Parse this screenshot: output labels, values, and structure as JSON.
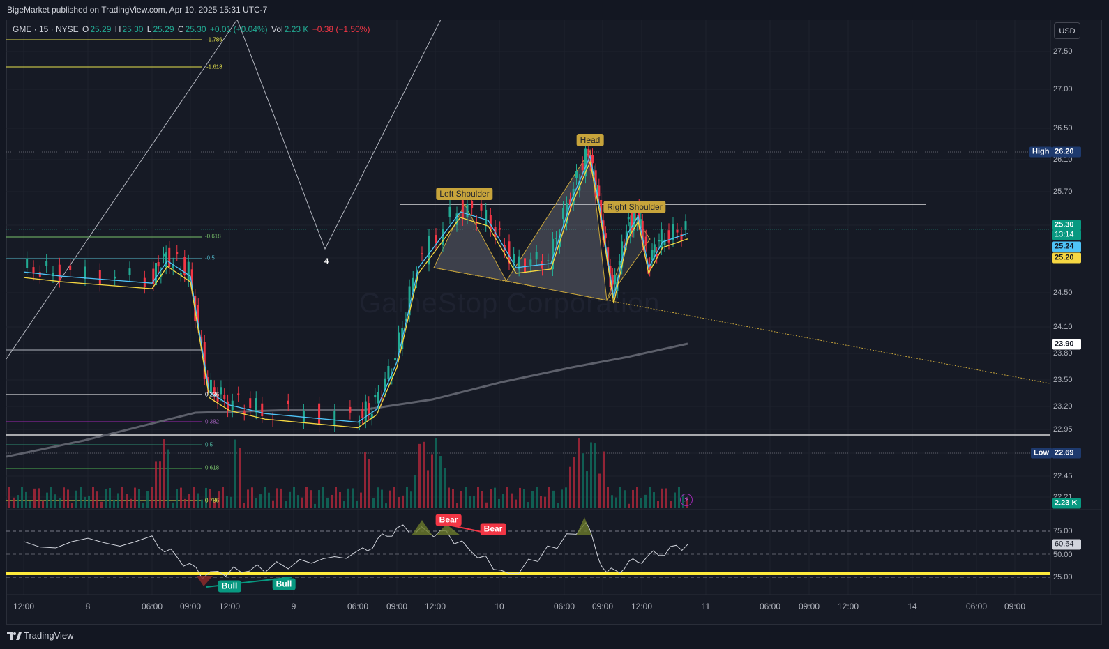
{
  "header": {
    "publisher_text": "BigeMarket published on TradingView.com, Apr 10, 2025 15:31 UTC-7"
  },
  "legend": {
    "symbol": "GME · 15 · NYSE",
    "o_label": "O",
    "o_value": "25.29",
    "h_label": "H",
    "h_value": "25.30",
    "l_label": "L",
    "l_value": "25.29",
    "c_label": "C",
    "c_value": "25.30",
    "change": "+0.01 (+0.04%)",
    "vol_label": "Vol",
    "vol_value": "2.23 K",
    "vol_change": "−0.38 (−1.50%)"
  },
  "currency_button": "USD",
  "watermark": "GameStop Corporation",
  "price_axis": {
    "ticks": [
      "27.50",
      "27.00",
      "26.50",
      "26.10",
      "25.70",
      "24.50",
      "24.10",
      "23.80",
      "23.50",
      "23.20",
      "22.95",
      "22.45",
      "22.21"
    ],
    "high_label": "High",
    "high_value": "26.20",
    "low_label": "Low",
    "low_value": "22.69",
    "last_price": "25.30",
    "countdown": "13:14",
    "ma_fast_value": "25.24",
    "ma_slow_value": "25.20",
    "ma_long_value": "23.90",
    "volume_value": "2.23 K"
  },
  "rsi": {
    "ticks": [
      "75.00",
      "50.00",
      "25.00"
    ],
    "current_value": "60.64",
    "divergence_labels": {
      "bull_1": "Bull",
      "bull_2": "Bull",
      "bear_1": "Bear",
      "bear_2": "Bear"
    }
  },
  "time_axis": [
    "12:00",
    "8",
    "06:00",
    "09:00",
    "12:00",
    "9",
    "06:00",
    "09:00",
    "12:00",
    "10",
    "06:00",
    "09:00",
    "12:00",
    "11",
    "06:00",
    "09:00",
    "12:00",
    "14",
    "06:00",
    "09:00"
  ],
  "pattern_labels": {
    "left_shoulder": "Left Shoulder",
    "head": "Head",
    "right_shoulder": "Right Shoulder",
    "wave_number": "4"
  },
  "fib_levels": [
    "-1.786",
    "-1.618",
    "-0.618",
    "-0.5",
    "0.236",
    "0.382",
    "0.5",
    "0.618",
    "0.786"
  ],
  "footer": {
    "brand": "TradingView"
  },
  "colors": {
    "background": "#131722",
    "bull_candle": "#22ab94",
    "bear_candle": "#f23645",
    "pattern_label": "#c7a43b",
    "ma_fast": "#4fc3f7",
    "ma_slow": "#f5d742",
    "rsi_line": "#d1d4dc",
    "rsi_support": "#ffeb3b"
  },
  "chart_data": {
    "type": "candlestick",
    "title": "GME · 15 · NYSE",
    "price_series": {
      "x": [
        "Apr 7 12:00",
        "Apr 7 14:00",
        "Apr 8 06:00",
        "Apr 8 08:00",
        "Apr 8 09:00",
        "Apr 8 10:00",
        "Apr 8 12:00",
        "Apr 8 14:00",
        "Apr 9 06:00",
        "Apr 9 08:00",
        "Apr 9 09:00",
        "Apr 9 09:30",
        "Apr 9 12:00",
        "Apr 9 13:00",
        "Apr 9 14:00",
        "Apr 10 06:00",
        "Apr 10 07:30",
        "Apr 10 08:00",
        "Apr 10 08:30",
        "Apr 10 09:00",
        "Apr 10 10:00",
        "Apr 10 11:00",
        "Apr 10 12:00",
        "Apr 10 13:00",
        "Apr 10 14:30"
      ],
      "close": [
        24.85,
        24.8,
        24.72,
        24.98,
        24.8,
        23.45,
        23.3,
        23.2,
        23.1,
        23.25,
        23.8,
        24.9,
        25.55,
        25.45,
        24.9,
        24.95,
        25.7,
        26.2,
        25.6,
        24.55,
        25.3,
        25.5,
        24.9,
        25.2,
        25.3
      ]
    },
    "rsi_series": {
      "x": [
        "Apr 7 12:00",
        "Apr 8 06:00",
        "Apr 8 09:00",
        "Apr 8 12:00",
        "Apr 9 06:00",
        "Apr 9 09:00",
        "Apr 9 12:00",
        "Apr 10 06:00",
        "Apr 10 08:00",
        "Apr 10 09:00",
        "Apr 10 12:00",
        "Apr 10 14:30"
      ],
      "y": [
        60,
        65,
        28,
        35,
        50,
        78,
        72,
        26,
        82,
        28,
        45,
        60.64
      ]
    },
    "overbought": 75,
    "oversold": 25,
    "high": 26.2,
    "low": 22.69,
    "last": 25.3
  }
}
